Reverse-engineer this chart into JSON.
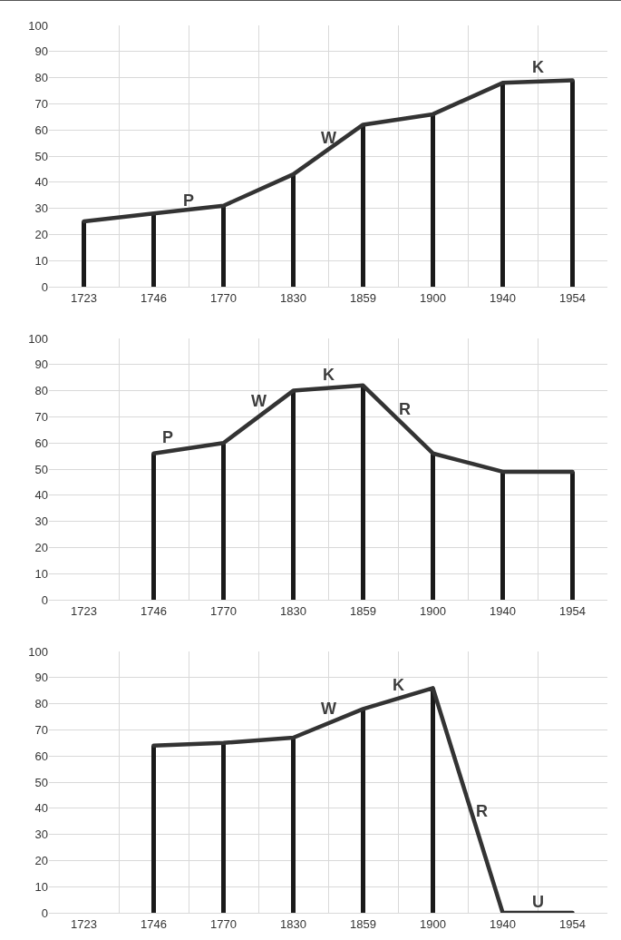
{
  "chart_data": [
    {
      "type": "bar",
      "categories": [
        "1723",
        "1746",
        "1770",
        "1830",
        "1859",
        "1900",
        "1940",
        "1954"
      ],
      "ylim": [
        0,
        100
      ],
      "yticks": [
        0,
        10,
        20,
        30,
        40,
        50,
        60,
        70,
        80,
        90,
        100
      ],
      "grid": true,
      "marker": "none",
      "line_style": "solid",
      "annotations": [
        "P",
        "W",
        "K"
      ],
      "series": [
        {
          "color": "#1a1a1a",
          "values": [
            25,
            28,
            31,
            43,
            62,
            66,
            78,
            79
          ]
        },
        {
          "type": "line",
          "color": "#333333",
          "values": [
            25,
            28,
            31,
            43,
            62,
            66,
            78,
            79
          ]
        }
      ]
    },
    {
      "type": "bar",
      "categories": [
        "1723",
        "1746",
        "1770",
        "1830",
        "1859",
        "1900",
        "1940",
        "1954"
      ],
      "ylim": [
        0,
        100
      ],
      "yticks": [
        0,
        10,
        20,
        30,
        40,
        50,
        60,
        70,
        80,
        90,
        100
      ],
      "grid": true,
      "marker": "none",
      "line_style": "solid",
      "annotations": [
        "P",
        "W",
        "K",
        "R"
      ],
      "series": [
        {
          "color": "#1a1a1a",
          "values": [
            null,
            56,
            60,
            80,
            82,
            56,
            49,
            49
          ]
        },
        {
          "type": "line",
          "color": "#333333",
          "values": [
            null,
            56,
            60,
            80,
            82,
            56,
            49,
            49
          ]
        }
      ]
    },
    {
      "type": "bar",
      "categories": [
        "1723",
        "1746",
        "1770",
        "1830",
        "1859",
        "1900",
        "1940",
        "1954"
      ],
      "ylim": [
        0,
        100
      ],
      "yticks": [
        0,
        10,
        20,
        30,
        40,
        50,
        60,
        70,
        80,
        90,
        100
      ],
      "grid": true,
      "marker": "none",
      "line_style": "solid",
      "annotations": [
        "W",
        "K",
        "R",
        "U"
      ],
      "series": [
        {
          "color": "#1a1a1a",
          "values": [
            null,
            64,
            65,
            67,
            78,
            86,
            0,
            0
          ]
        },
        {
          "type": "line",
          "color": "#333333",
          "values": [
            null,
            64,
            65,
            67,
            78,
            86,
            0,
            0
          ]
        }
      ]
    }
  ]
}
